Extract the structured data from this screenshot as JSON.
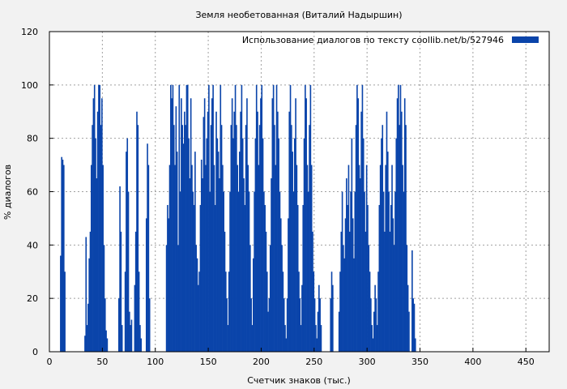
{
  "chart_data": {
    "type": "bar",
    "title": "Земля необетованная (Виталий Надыршин)",
    "xlabel": "Счетчик знаков (тыс.)",
    "ylabel": "% диалогов",
    "xlim": [
      0,
      472
    ],
    "ylim": [
      0,
      120
    ],
    "xticks": [
      0,
      50,
      100,
      150,
      200,
      250,
      300,
      350,
      400,
      450
    ],
    "yticks": [
      0,
      20,
      40,
      60,
      80,
      100,
      120
    ],
    "grid": true,
    "legend_position": "top-right",
    "series": [
      {
        "name": "Использование диалогов по тексту  coollib.net/b/527946",
        "color": "#0a44aa",
        "x_step": 1,
        "x_start": 10,
        "values": [
          36,
          73,
          72,
          70,
          30,
          0,
          0,
          0,
          0,
          0,
          0,
          0,
          0,
          0,
          0,
          0,
          0,
          0,
          0,
          0,
          0,
          0,
          0,
          6,
          43,
          10,
          18,
          35,
          45,
          70,
          85,
          95,
          100,
          80,
          65,
          90,
          100,
          100,
          85,
          95,
          70,
          40,
          20,
          8,
          5,
          0,
          0,
          0,
          0,
          0,
          0,
          0,
          0,
          0,
          0,
          20,
          62,
          45,
          10,
          0,
          0,
          30,
          75,
          80,
          60,
          15,
          10,
          12,
          0,
          0,
          25,
          45,
          90,
          85,
          30,
          10,
          5,
          0,
          0,
          0,
          0,
          50,
          78,
          70,
          20,
          0,
          0,
          0,
          0,
          0,
          0,
          0,
          0,
          0,
          0,
          0,
          0,
          0,
          0,
          0,
          40,
          55,
          50,
          70,
          100,
          95,
          100,
          85,
          70,
          92,
          75,
          40,
          100,
          60,
          95,
          85,
          78,
          90,
          85,
          100,
          100,
          80,
          65,
          95,
          70,
          60,
          55,
          75,
          40,
          35,
          25,
          30,
          55,
          72,
          65,
          88,
          95,
          70,
          80,
          90,
          100,
          60,
          85,
          95,
          100,
          70,
          55,
          90,
          80,
          75,
          65,
          100,
          85,
          70,
          60,
          45,
          30,
          20,
          10,
          30,
          60,
          85,
          95,
          80,
          90,
          100,
          85,
          70,
          60,
          75,
          90,
          100,
          80,
          65,
          55,
          85,
          95,
          70,
          60,
          40,
          20,
          10,
          35,
          60,
          80,
          100,
          90,
          70,
          85,
          95,
          100,
          80,
          60,
          55,
          45,
          30,
          15,
          20,
          40,
          65,
          95,
          100,
          85,
          70,
          100,
          90,
          80,
          60,
          50,
          40,
          30,
          20,
          10,
          5,
          20,
          50,
          90,
          100,
          85,
          75,
          60,
          80,
          95,
          70,
          55,
          30,
          20,
          10,
          25,
          55,
          80,
          100,
          95,
          70,
          60,
          85,
          100,
          70,
          45,
          30,
          20,
          10,
          5,
          15,
          25,
          20,
          10,
          0,
          0,
          0,
          0,
          0,
          0,
          0,
          0,
          20,
          30,
          25,
          0,
          0,
          0,
          0,
          0,
          15,
          30,
          45,
          60,
          40,
          35,
          50,
          65,
          55,
          70,
          45,
          60,
          80,
          50,
          35,
          60,
          85,
          100,
          95,
          70,
          65,
          90,
          100,
          80,
          60,
          45,
          70,
          55,
          40,
          30,
          20,
          10,
          5,
          15,
          25,
          20,
          10,
          30,
          55,
          70,
          80,
          85,
          60,
          45,
          70,
          90,
          75,
          60,
          45,
          55,
          70,
          50,
          40,
          60,
          80,
          95,
          100,
          85,
          100,
          90,
          70,
          60,
          95,
          85,
          40,
          25,
          15,
          0,
          0,
          38,
          20,
          18,
          5
        ]
      }
    ]
  }
}
